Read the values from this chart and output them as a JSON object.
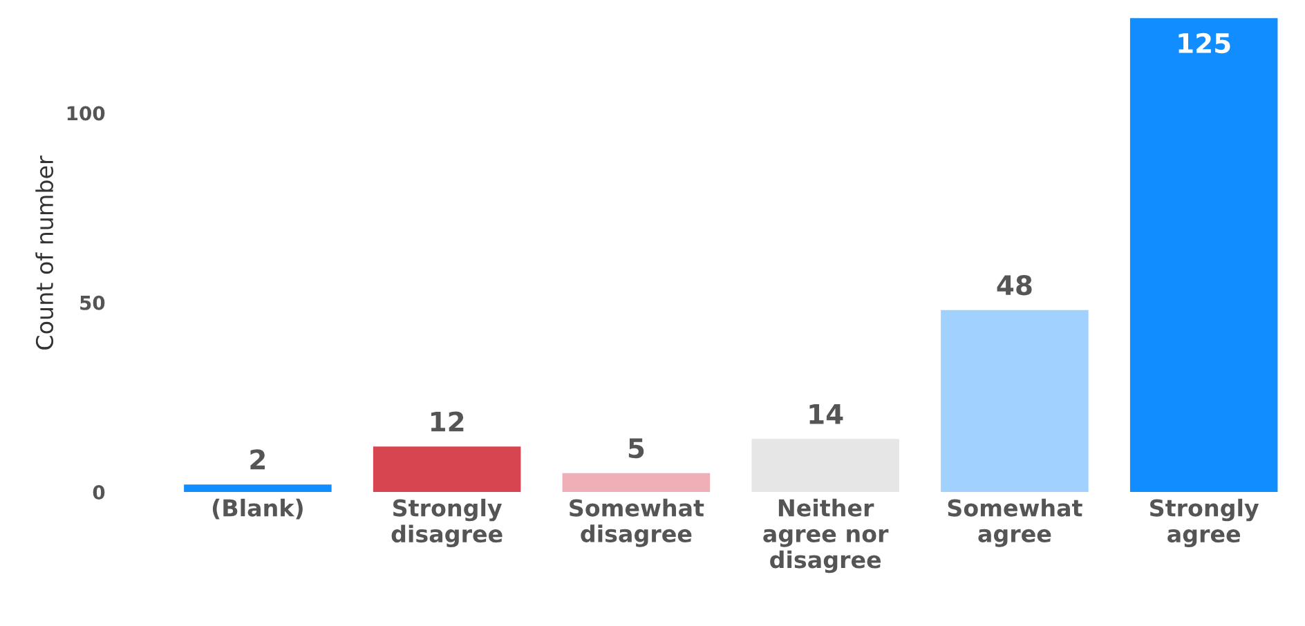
{
  "chart_data": {
    "type": "bar",
    "ylabel": "Count of number",
    "categories": [
      "(Blank)",
      "Strongly disagree",
      "Somewhat disagree",
      "Neither agree nor disagree",
      "Somewhat agree",
      "Strongly agree"
    ],
    "values": [
      2,
      12,
      5,
      14,
      48,
      125
    ],
    "colors": [
      "#118dff",
      "#d64550",
      "#eeb0b6",
      "#e6e6e6",
      "#a0d1ff",
      "#118dff"
    ],
    "ylim": [
      0,
      126
    ],
    "yticks": [
      0,
      50,
      100
    ],
    "grid": false,
    "data_labels": true
  }
}
